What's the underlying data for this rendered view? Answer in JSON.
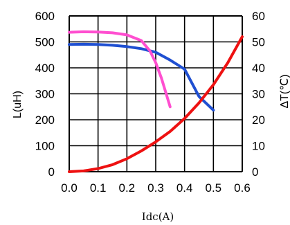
{
  "chart_data": {
    "type": "line",
    "xlabel": "Idc(A)",
    "ylabel_left": "L(uH)",
    "ylabel_right": "ΔT(℃)",
    "xlim": [
      0,
      0.6
    ],
    "ylim_left": [
      0,
      600
    ],
    "ylim_right": [
      0,
      60
    ],
    "grid": true,
    "x_ticks": [
      "0.0",
      "0.1",
      "0.2",
      "0.3",
      "0.4",
      "0.5",
      "0.6"
    ],
    "y_left_ticks": [
      "0",
      "100",
      "200",
      "300",
      "400",
      "500",
      "600"
    ],
    "y_right_ticks": [
      "0",
      "10",
      "20",
      "30",
      "40",
      "50",
      "60"
    ],
    "series": [
      {
        "axis": "left",
        "color": "#1f4fd1",
        "points": [
          [
            0,
            490
          ],
          [
            0.05,
            491
          ],
          [
            0.1,
            490
          ],
          [
            0.15,
            487
          ],
          [
            0.2,
            482
          ],
          [
            0.25,
            474
          ],
          [
            0.3,
            460
          ],
          [
            0.35,
            430
          ],
          [
            0.4,
            395
          ],
          [
            0.45,
            290
          ],
          [
            0.5,
            237
          ]
        ]
      },
      {
        "axis": "left",
        "color": "#ff4fd0",
        "points": [
          [
            0,
            537
          ],
          [
            0.05,
            539
          ],
          [
            0.1,
            538
          ],
          [
            0.15,
            535
          ],
          [
            0.2,
            527
          ],
          [
            0.25,
            505
          ],
          [
            0.28,
            465
          ],
          [
            0.3,
            420
          ],
          [
            0.32,
            360
          ],
          [
            0.35,
            250
          ]
        ]
      },
      {
        "axis": "right",
        "color": "#ee1111",
        "points": [
          [
            0,
            0
          ],
          [
            0.05,
            0.3
          ],
          [
            0.1,
            1.2
          ],
          [
            0.15,
            2.7
          ],
          [
            0.2,
            5
          ],
          [
            0.25,
            8
          ],
          [
            0.3,
            11.5
          ],
          [
            0.35,
            15.5
          ],
          [
            0.4,
            20.5
          ],
          [
            0.45,
            26.5
          ],
          [
            0.5,
            33.5
          ],
          [
            0.55,
            42
          ],
          [
            0.6,
            52
          ]
        ]
      }
    ]
  }
}
